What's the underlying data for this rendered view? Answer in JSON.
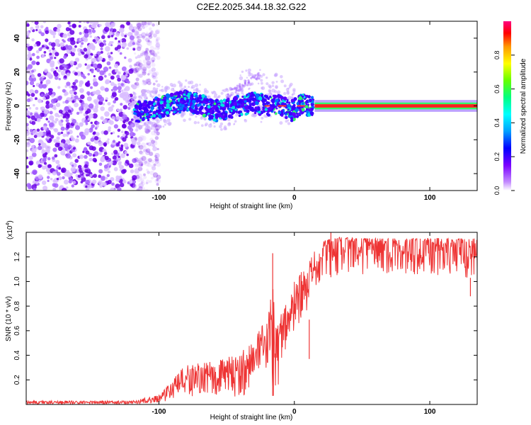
{
  "title": "C2E2.2025.344.18.32.G22",
  "chart_data": [
    {
      "type": "heatmap",
      "xlabel": "Height of straight line (km)",
      "ylabel": "Frequency (Hz)",
      "xlim": [
        -198,
        135
      ],
      "ylim": [
        -50,
        50
      ],
      "xticks": [
        -100,
        0,
        100
      ],
      "yticks": [
        -40,
        -20,
        0,
        20,
        40
      ],
      "noise_region_x": [
        -198,
        -118
      ],
      "track": [
        {
          "x": -118,
          "y": -4
        },
        {
          "x": -110,
          "y": -3
        },
        {
          "x": -100,
          "y": -1
        },
        {
          "x": -90,
          "y": 1
        },
        {
          "x": -80,
          "y": 3
        },
        {
          "x": -70,
          "y": 1
        },
        {
          "x": -60,
          "y": -3
        },
        {
          "x": -50,
          "y": -2
        },
        {
          "x": -40,
          "y": 0
        },
        {
          "x": -30,
          "y": 2
        },
        {
          "x": -20,
          "y": 0
        },
        {
          "x": -10,
          "y": 0
        },
        {
          "x": -2,
          "y": -3
        },
        {
          "x": 5,
          "y": 1
        },
        {
          "x": 10,
          "y": 0
        },
        {
          "x": 15,
          "y": 0
        },
        {
          "x": 135,
          "y": 0
        }
      ],
      "colorbar": {
        "label": "Normalized spectral amplitude",
        "ticks": [
          "0.0",
          "0.2",
          "0.4",
          "0.6",
          "0.8"
        ],
        "range": [
          0,
          1
        ],
        "colors": [
          "#ffffff",
          "#c48cff",
          "#7a00ff",
          "#0000ff",
          "#00a0ff",
          "#00ffff",
          "#00ff80",
          "#66ff00",
          "#ffff00",
          "#ff9900",
          "#ff0000",
          "#ff0080"
        ]
      }
    },
    {
      "type": "line",
      "xlabel": "Height of straight line (km)",
      "ylabel": "SNR (10 * v/v)",
      "exponent_label": "(x10",
      "exponent_power": "4",
      "exponent_close": ")",
      "xlim": [
        -198,
        135
      ],
      "ylim": [
        0,
        1.4
      ],
      "xticks": [
        -100,
        0,
        100
      ],
      "yticks": [
        "0.2",
        "0.4",
        "0.6",
        "0.8",
        "1.0",
        "1.2"
      ],
      "series_color": "#ee3333",
      "envelope": [
        {
          "x": -198,
          "lo": 0.0,
          "hi": 0.03
        },
        {
          "x": -120,
          "lo": 0.0,
          "hi": 0.03
        },
        {
          "x": -100,
          "lo": 0.01,
          "hi": 0.08
        },
        {
          "x": -90,
          "lo": 0.03,
          "hi": 0.2
        },
        {
          "x": -80,
          "lo": 0.05,
          "hi": 0.33
        },
        {
          "x": -60,
          "lo": 0.05,
          "hi": 0.35
        },
        {
          "x": -40,
          "lo": 0.05,
          "hi": 0.42
        },
        {
          "x": -30,
          "lo": 0.1,
          "hi": 0.55
        },
        {
          "x": -20,
          "lo": 0.15,
          "hi": 0.7
        },
        {
          "x": -15,
          "lo": 0.05,
          "hi": 1.15
        },
        {
          "x": -13,
          "lo": 0.02,
          "hi": 0.65
        },
        {
          "x": -10,
          "lo": 0.3,
          "hi": 0.75
        },
        {
          "x": 0,
          "lo": 0.55,
          "hi": 1.0
        },
        {
          "x": 10,
          "lo": 0.65,
          "hi": 1.15
        },
        {
          "x": 15,
          "lo": 0.85,
          "hi": 1.25
        },
        {
          "x": 20,
          "lo": 1.0,
          "hi": 1.32
        },
        {
          "x": 30,
          "lo": 1.05,
          "hi": 1.36
        },
        {
          "x": 60,
          "lo": 1.05,
          "hi": 1.35
        },
        {
          "x": 100,
          "lo": 1.05,
          "hi": 1.35
        },
        {
          "x": 120,
          "lo": 1.03,
          "hi": 1.35
        },
        {
          "x": 135,
          "lo": 1.03,
          "hi": 1.35
        }
      ],
      "spikes": [
        {
          "x": -16,
          "y": 1.23
        },
        {
          "x": 11,
          "y": 0.37
        },
        {
          "x": 27,
          "y": 1.44
        },
        {
          "x": 130,
          "y": 0.88
        }
      ]
    }
  ]
}
